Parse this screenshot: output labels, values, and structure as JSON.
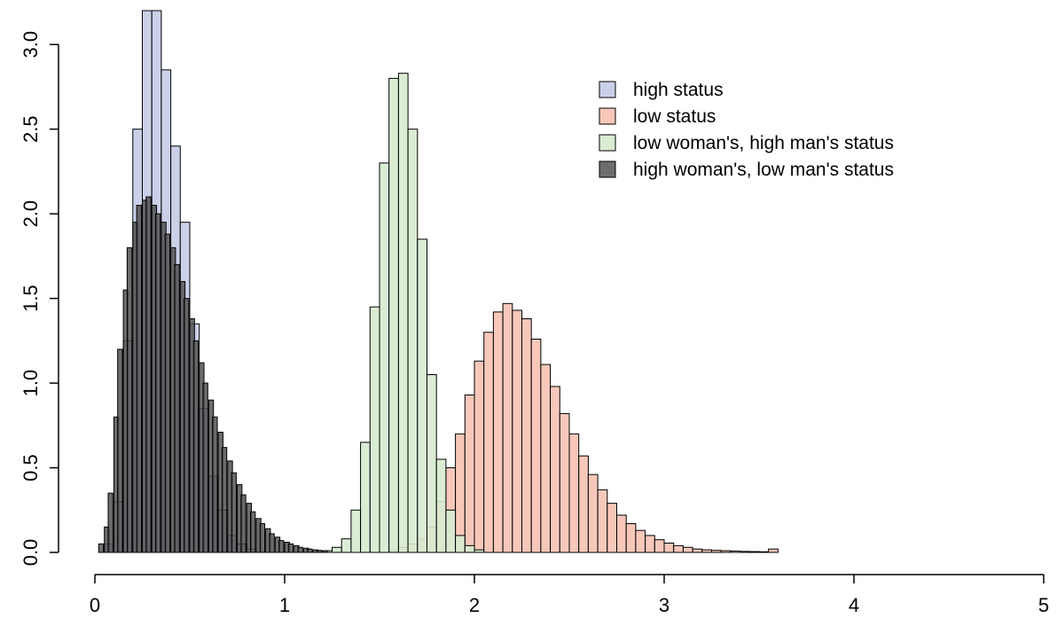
{
  "chart_data": {
    "type": "bar",
    "title": "",
    "xlabel": "",
    "ylabel": "",
    "xlim": [
      0,
      5
    ],
    "ylim": [
      0,
      3.2
    ],
    "x_ticks": [
      0,
      1,
      2,
      3,
      4,
      5
    ],
    "x_tick_labels": [
      "0",
      "1",
      "2",
      "3",
      "4",
      "5"
    ],
    "y_ticks": [
      0,
      0.5,
      1,
      1.5,
      2,
      2.5,
      3
    ],
    "y_tick_labels": [
      "0.0",
      "0.5",
      "1.0",
      "1.5",
      "2.0",
      "2.5",
      "3.0"
    ],
    "grid": false,
    "legend_position": "top-right",
    "bin_width": 0.05,
    "series": [
      {
        "name": "high status",
        "color": "#c8cde8",
        "fill_opacity": 0.95,
        "bins": [
          [
            0.05,
            0.05
          ],
          [
            0.1,
            0.3
          ],
          [
            0.15,
            1.25
          ],
          [
            0.2,
            2.5
          ],
          [
            0.25,
            3.2
          ],
          [
            0.3,
            3.2
          ],
          [
            0.35,
            2.85
          ],
          [
            0.4,
            2.4
          ],
          [
            0.45,
            1.95
          ],
          [
            0.5,
            1.35
          ],
          [
            0.55,
            0.85
          ],
          [
            0.6,
            0.45
          ],
          [
            0.65,
            0.25
          ],
          [
            0.7,
            0.1
          ],
          [
            0.75,
            0.05
          ],
          [
            0.8,
            0.02
          ]
        ]
      },
      {
        "name": "low status",
        "color": "#f7c5b6",
        "fill_opacity": 0.95,
        "bins": [
          [
            1.55,
            0.01
          ],
          [
            1.6,
            0.03
          ],
          [
            1.65,
            0.05
          ],
          [
            1.7,
            0.08
          ],
          [
            1.75,
            0.15
          ],
          [
            1.8,
            0.3
          ],
          [
            1.85,
            0.5
          ],
          [
            1.9,
            0.7
          ],
          [
            1.95,
            0.93
          ],
          [
            2.0,
            1.13
          ],
          [
            2.05,
            1.3
          ],
          [
            2.1,
            1.42
          ],
          [
            2.15,
            1.47
          ],
          [
            2.2,
            1.43
          ],
          [
            2.25,
            1.38
          ],
          [
            2.3,
            1.26
          ],
          [
            2.35,
            1.11
          ],
          [
            2.4,
            0.98
          ],
          [
            2.45,
            0.82
          ],
          [
            2.5,
            0.7
          ],
          [
            2.55,
            0.57
          ],
          [
            2.6,
            0.46
          ],
          [
            2.65,
            0.37
          ],
          [
            2.7,
            0.29
          ],
          [
            2.75,
            0.22
          ],
          [
            2.8,
            0.17
          ],
          [
            2.85,
            0.13
          ],
          [
            2.9,
            0.1
          ],
          [
            2.95,
            0.075
          ],
          [
            3.0,
            0.055
          ],
          [
            3.05,
            0.04
          ],
          [
            3.1,
            0.03
          ],
          [
            3.15,
            0.02
          ],
          [
            3.2,
            0.015
          ],
          [
            3.25,
            0.012
          ],
          [
            3.3,
            0.01
          ],
          [
            3.35,
            0.008
          ],
          [
            3.4,
            0.006
          ],
          [
            3.45,
            0.005
          ],
          [
            3.5,
            0.004
          ],
          [
            3.55,
            0.02
          ]
        ]
      },
      {
        "name": "low woman's, high man's status",
        "color": "#d6ebcf",
        "fill_opacity": 0.9,
        "bins": [
          [
            1.2,
            0.01
          ],
          [
            1.25,
            0.03
          ],
          [
            1.3,
            0.08
          ],
          [
            1.35,
            0.25
          ],
          [
            1.4,
            0.65
          ],
          [
            1.45,
            1.45
          ],
          [
            1.5,
            2.3
          ],
          [
            1.55,
            2.8
          ],
          [
            1.6,
            2.83
          ],
          [
            1.65,
            2.5
          ],
          [
            1.7,
            1.85
          ],
          [
            1.75,
            1.05
          ],
          [
            1.8,
            0.55
          ],
          [
            1.85,
            0.25
          ],
          [
            1.9,
            0.1
          ],
          [
            1.95,
            0.04
          ],
          [
            2.0,
            0.015
          ]
        ]
      },
      {
        "name": "high woman's, low man's status",
        "color": "#4d4d4d",
        "fill_opacity": 0.82,
        "bins": [
          [
            0.02,
            0.05
          ],
          [
            0.05,
            0.15
          ],
          [
            0.07,
            0.35
          ],
          [
            0.1,
            0.8
          ],
          [
            0.12,
            1.2
          ],
          [
            0.15,
            1.55
          ],
          [
            0.17,
            1.8
          ],
          [
            0.2,
            1.95
          ],
          [
            0.22,
            2.05
          ],
          [
            0.25,
            2.08
          ],
          [
            0.27,
            2.1
          ],
          [
            0.3,
            2.05
          ],
          [
            0.32,
            2.0
          ],
          [
            0.35,
            1.95
          ],
          [
            0.37,
            1.88
          ],
          [
            0.4,
            1.8
          ],
          [
            0.42,
            1.7
          ],
          [
            0.45,
            1.6
          ],
          [
            0.47,
            1.5
          ],
          [
            0.5,
            1.38
          ],
          [
            0.52,
            1.25
          ],
          [
            0.55,
            1.12
          ],
          [
            0.57,
            1.0
          ],
          [
            0.6,
            0.9
          ],
          [
            0.62,
            0.8
          ],
          [
            0.65,
            0.71
          ],
          [
            0.67,
            0.62
          ],
          [
            0.7,
            0.54
          ],
          [
            0.72,
            0.47
          ],
          [
            0.75,
            0.4
          ],
          [
            0.77,
            0.34
          ],
          [
            0.8,
            0.29
          ],
          [
            0.82,
            0.24
          ],
          [
            0.85,
            0.2
          ],
          [
            0.87,
            0.17
          ],
          [
            0.9,
            0.14
          ],
          [
            0.92,
            0.11
          ],
          [
            0.95,
            0.09
          ],
          [
            0.97,
            0.07
          ],
          [
            1.0,
            0.06
          ],
          [
            1.02,
            0.05
          ],
          [
            1.05,
            0.04
          ],
          [
            1.07,
            0.03
          ],
          [
            1.1,
            0.025
          ],
          [
            1.12,
            0.02
          ],
          [
            1.15,
            0.015
          ],
          [
            1.17,
            0.012
          ],
          [
            1.2,
            0.01
          ]
        ]
      }
    ]
  }
}
